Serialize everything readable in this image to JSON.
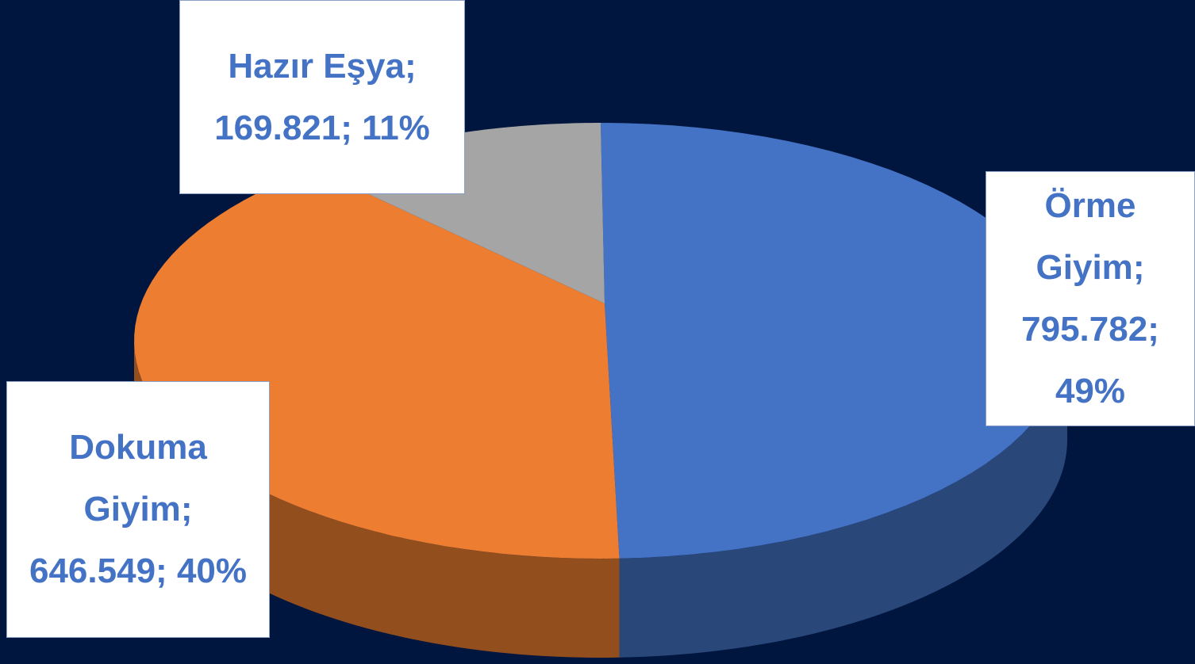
{
  "chart_data": {
    "type": "pie3d",
    "categories": [
      "Örme Giyim",
      "Dokuma Giyim",
      "Hazır Eşya"
    ],
    "values": [
      795782,
      646549,
      169821
    ],
    "value_labels": [
      "795.782",
      "646.549",
      "169.821"
    ],
    "percents": [
      49,
      40,
      11
    ],
    "percent_labels": [
      "49%",
      "40%",
      "11%"
    ],
    "label_separator": ";",
    "colors": [
      "#4472c4",
      "#ed7d31",
      "#a5a5a5"
    ]
  }
}
